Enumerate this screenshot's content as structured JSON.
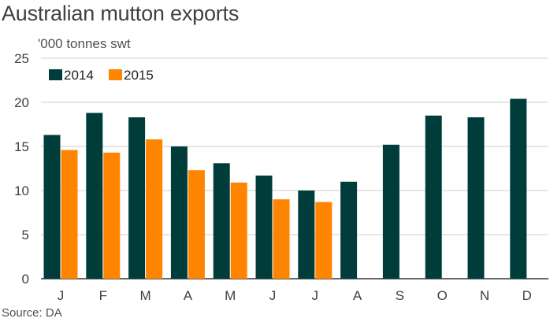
{
  "title": "Australian mutton exports",
  "unit_label": "'000 tonnes swt",
  "source": "Source: DA",
  "colors": {
    "2014": "#003d3a",
    "2015": "#ff8400",
    "grid": "#cccccc",
    "axis": "#333333"
  },
  "chart_data": {
    "type": "bar",
    "title": "Australian mutton exports",
    "ylabel": "'000 tonnes swt",
    "xlabel": "",
    "categories": [
      "J",
      "F",
      "M",
      "A",
      "M",
      "J",
      "J",
      "A",
      "S",
      "O",
      "N",
      "D"
    ],
    "series": [
      {
        "name": "2014",
        "values": [
          16.3,
          18.8,
          18.3,
          15.0,
          13.1,
          11.7,
          10.0,
          11.0,
          15.2,
          18.5,
          18.3,
          20.4
        ]
      },
      {
        "name": "2015",
        "values": [
          14.6,
          14.3,
          15.8,
          12.3,
          10.9,
          9.0,
          8.7,
          null,
          null,
          null,
          null,
          null
        ]
      }
    ],
    "ylim": [
      0,
      25
    ],
    "yticks": [
      0,
      5,
      10,
      15,
      20,
      25
    ],
    "grid": true,
    "legend": "top-left"
  }
}
